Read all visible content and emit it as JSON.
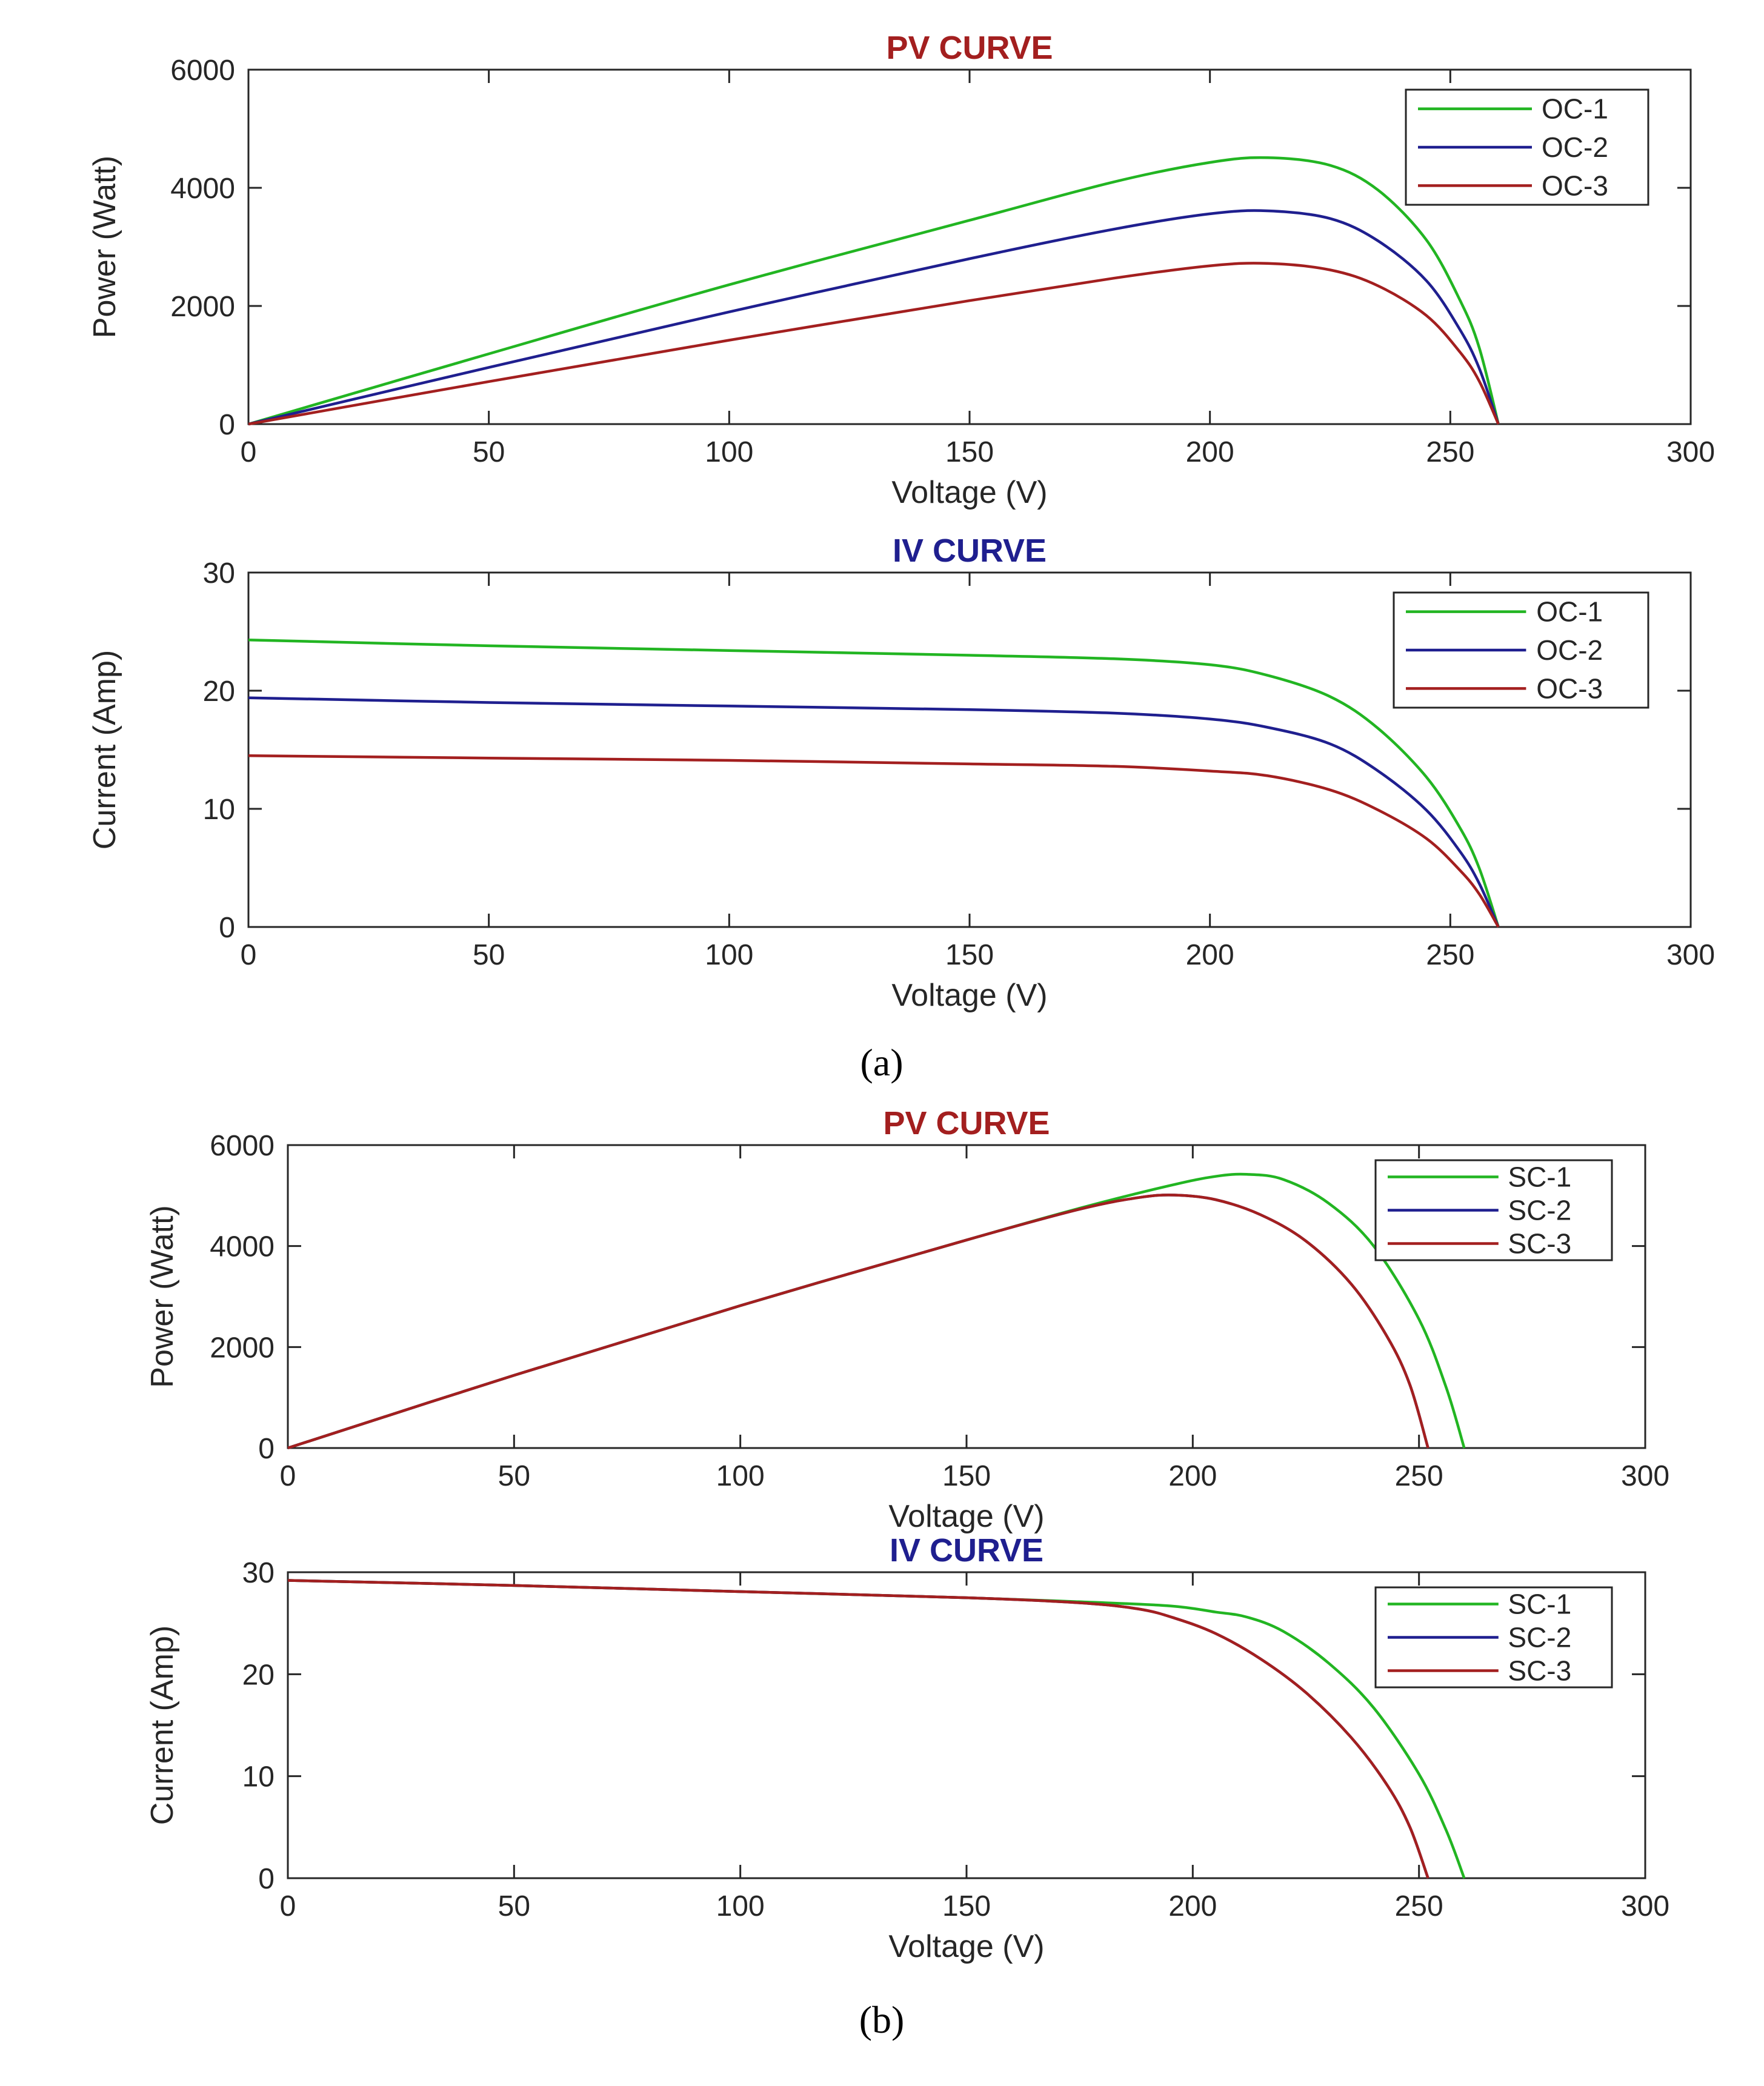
{
  "colors": {
    "green": "#22b522",
    "blue": "#1f1f8f",
    "red": "#a31f1f",
    "pv_title": "#a31f1f",
    "iv_title": "#1f1f8f"
  },
  "panel_labels": {
    "a": "(a)",
    "b": "(b)"
  },
  "chart_data": [
    {
      "id": "a-pv",
      "type": "line",
      "title": "PV CURVE",
      "title_color": "pv_title",
      "xlabel": "Voltage (V)",
      "ylabel": "Power (Watt)",
      "xlim": [
        0,
        300
      ],
      "ylim": [
        0,
        6000
      ],
      "xticks": [
        0,
        50,
        100,
        150,
        200,
        250,
        300
      ],
      "yticks": [
        0,
        2000,
        4000,
        6000
      ],
      "legend": "top-right",
      "series": [
        {
          "name": "OC-1",
          "color": "green",
          "points": [
            [
              0,
              0
            ],
            [
              50,
              1190
            ],
            [
              100,
              2360
            ],
            [
              150,
              3450
            ],
            [
              180,
              4100
            ],
            [
              200,
              4430
            ],
            [
              212,
              4510
            ],
            [
              225,
              4380
            ],
            [
              235,
              3960
            ],
            [
              245,
              3120
            ],
            [
              252,
              2100
            ],
            [
              256,
              1300
            ],
            [
              260,
              0
            ]
          ]
        },
        {
          "name": "OC-2",
          "color": "blue",
          "points": [
            [
              0,
              0
            ],
            [
              50,
              960
            ],
            [
              100,
              1900
            ],
            [
              150,
              2800
            ],
            [
              180,
              3300
            ],
            [
              200,
              3560
            ],
            [
              212,
              3610
            ],
            [
              225,
              3480
            ],
            [
              235,
              3100
            ],
            [
              245,
              2430
            ],
            [
              252,
              1600
            ],
            [
              256,
              950
            ],
            [
              260,
              0
            ]
          ]
        },
        {
          "name": "OC-3",
          "color": "red",
          "points": [
            [
              0,
              0
            ],
            [
              50,
              720
            ],
            [
              100,
              1420
            ],
            [
              150,
              2090
            ],
            [
              180,
              2470
            ],
            [
              200,
              2680
            ],
            [
              212,
              2720
            ],
            [
              225,
              2610
            ],
            [
              235,
              2340
            ],
            [
              245,
              1840
            ],
            [
              252,
              1220
            ],
            [
              256,
              730
            ],
            [
              260,
              0
            ]
          ]
        }
      ]
    },
    {
      "id": "a-iv",
      "type": "line",
      "title": "IV CURVE",
      "title_color": "iv_title",
      "xlabel": "Voltage (V)",
      "ylabel": "Current (Amp)",
      "xlim": [
        0,
        300
      ],
      "ylim": [
        0,
        30
      ],
      "xticks": [
        0,
        50,
        100,
        150,
        200,
        250,
        300
      ],
      "yticks": [
        0,
        10,
        20,
        30
      ],
      "legend": "top-right",
      "series": [
        {
          "name": "OC-1",
          "color": "green",
          "points": [
            [
              0,
              24.3
            ],
            [
              50,
              23.8
            ],
            [
              100,
              23.4
            ],
            [
              150,
              23.0
            ],
            [
              180,
              22.7
            ],
            [
              200,
              22.2
            ],
            [
              212,
              21.3
            ],
            [
              225,
              19.5
            ],
            [
              235,
              16.8
            ],
            [
              245,
              12.7
            ],
            [
              252,
              8.4
            ],
            [
              256,
              5.0
            ],
            [
              260,
              0
            ]
          ]
        },
        {
          "name": "OC-2",
          "color": "blue",
          "points": [
            [
              0,
              19.4
            ],
            [
              50,
              19.0
            ],
            [
              100,
              18.7
            ],
            [
              150,
              18.4
            ],
            [
              180,
              18.1
            ],
            [
              200,
              17.6
            ],
            [
              212,
              16.9
            ],
            [
              225,
              15.5
            ],
            [
              235,
              13.2
            ],
            [
              245,
              9.9
            ],
            [
              252,
              6.4
            ],
            [
              256,
              3.7
            ],
            [
              260,
              0
            ]
          ]
        },
        {
          "name": "OC-3",
          "color": "red",
          "points": [
            [
              0,
              14.5
            ],
            [
              50,
              14.3
            ],
            [
              100,
              14.1
            ],
            [
              150,
              13.8
            ],
            [
              180,
              13.6
            ],
            [
              200,
              13.2
            ],
            [
              212,
              12.8
            ],
            [
              225,
              11.6
            ],
            [
              235,
              9.9
            ],
            [
              245,
              7.5
            ],
            [
              252,
              4.8
            ],
            [
              256,
              2.8
            ],
            [
              260,
              0
            ]
          ]
        }
      ]
    },
    {
      "id": "b-pv",
      "type": "line",
      "title": "PV CURVE",
      "title_color": "pv_title",
      "xlabel": "Voltage (V)",
      "ylabel": "Power (Watt)",
      "xlim": [
        0,
        300
      ],
      "ylim": [
        0,
        6000
      ],
      "xticks": [
        0,
        50,
        100,
        150,
        200,
        250,
        300
      ],
      "yticks": [
        0,
        2000,
        4000,
        6000
      ],
      "legend": "top-right",
      "series": [
        {
          "name": "SC-1",
          "color": "green",
          "points": [
            [
              0,
              0
            ],
            [
              50,
              1440
            ],
            [
              100,
              2820
            ],
            [
              150,
              4120
            ],
            [
              175,
              4750
            ],
            [
              195,
              5200
            ],
            [
              205,
              5380
            ],
            [
              212,
              5420
            ],
            [
              220,
              5320
            ],
            [
              230,
              4850
            ],
            [
              240,
              4000
            ],
            [
              250,
              2550
            ],
            [
              256,
              1200
            ],
            [
              260,
              0
            ]
          ]
        },
        {
          "name": "SC-2",
          "color": "blue",
          "points": [
            [
              0,
              0
            ],
            [
              50,
              1440
            ],
            [
              100,
              2820
            ],
            [
              150,
              4120
            ],
            [
              175,
              4730
            ],
            [
              188,
              4960
            ],
            [
              196,
              5010
            ],
            [
              205,
              4920
            ],
            [
              215,
              4620
            ],
            [
              225,
              4100
            ],
            [
              235,
              3250
            ],
            [
              243,
              2200
            ],
            [
              248,
              1250
            ],
            [
              252,
              0
            ]
          ]
        },
        {
          "name": "SC-3",
          "color": "red",
          "points": [
            [
              0,
              0
            ],
            [
              50,
              1440
            ],
            [
              100,
              2820
            ],
            [
              150,
              4120
            ],
            [
              175,
              4730
            ],
            [
              188,
              4960
            ],
            [
              196,
              5010
            ],
            [
              205,
              4920
            ],
            [
              215,
              4620
            ],
            [
              225,
              4100
            ],
            [
              235,
              3250
            ],
            [
              243,
              2200
            ],
            [
              248,
              1250
            ],
            [
              252,
              0
            ]
          ]
        }
      ]
    },
    {
      "id": "b-iv",
      "type": "line",
      "title": "IV CURVE",
      "title_color": "iv_title",
      "xlabel": "Voltage (V)",
      "ylabel": "Current (Amp)",
      "xlim": [
        0,
        300
      ],
      "ylim": [
        0,
        30
      ],
      "xticks": [
        0,
        50,
        100,
        150,
        200,
        250,
        300
      ],
      "yticks": [
        0,
        10,
        20,
        30
      ],
      "legend": "top-right",
      "series": [
        {
          "name": "SC-1",
          "color": "green",
          "points": [
            [
              0,
              29.2
            ],
            [
              50,
              28.7
            ],
            [
              100,
              28.1
            ],
            [
              150,
              27.5
            ],
            [
              175,
              27.1
            ],
            [
              195,
              26.7
            ],
            [
              205,
              26.1
            ],
            [
              212,
              25.6
            ],
            [
              220,
              24.2
            ],
            [
              230,
              21.1
            ],
            [
              240,
              16.7
            ],
            [
              250,
              10.2
            ],
            [
              256,
              4.7
            ],
            [
              260,
              0
            ]
          ]
        },
        {
          "name": "SC-2",
          "color": "blue",
          "points": [
            [
              0,
              29.2
            ],
            [
              50,
              28.7
            ],
            [
              100,
              28.1
            ],
            [
              150,
              27.5
            ],
            [
              175,
              27.0
            ],
            [
              188,
              26.4
            ],
            [
              196,
              25.5
            ],
            [
              205,
              24.0
            ],
            [
              215,
              21.5
            ],
            [
              225,
              18.2
            ],
            [
              235,
              13.8
            ],
            [
              243,
              9.1
            ],
            [
              248,
              5.0
            ],
            [
              252,
              0
            ]
          ]
        },
        {
          "name": "SC-3",
          "color": "red",
          "points": [
            [
              0,
              29.2
            ],
            [
              50,
              28.7
            ],
            [
              100,
              28.1
            ],
            [
              150,
              27.5
            ],
            [
              175,
              27.0
            ],
            [
              188,
              26.4
            ],
            [
              196,
              25.5
            ],
            [
              205,
              24.0
            ],
            [
              215,
              21.5
            ],
            [
              225,
              18.2
            ],
            [
              235,
              13.8
            ],
            [
              243,
              9.1
            ],
            [
              248,
              5.0
            ],
            [
              252,
              0
            ]
          ]
        }
      ]
    }
  ]
}
